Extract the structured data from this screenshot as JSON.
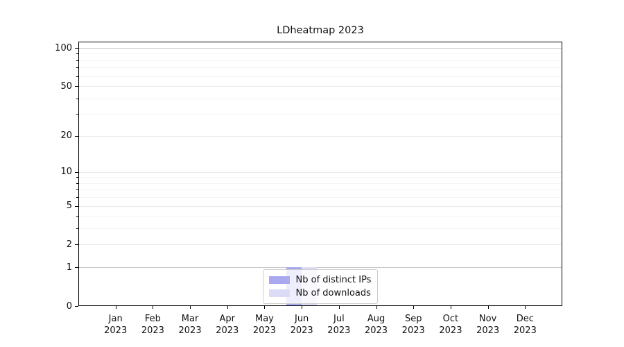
{
  "figure": {
    "background": "#ffffff"
  },
  "chart_data": {
    "type": "bar",
    "title": "LDheatmap 2023",
    "xlabel": "",
    "ylabel": "",
    "categories": [
      "Jan 2023",
      "Feb 2023",
      "Mar 2023",
      "Apr 2023",
      "May 2023",
      "Jun 2023",
      "Jul 2023",
      "Aug 2023",
      "Sep 2023",
      "Oct 2023",
      "Nov 2023",
      "Dec 2023"
    ],
    "series": [
      {
        "name": "Nb of distinct IPs",
        "color": "#a9a9f0",
        "values": [
          0,
          0,
          0,
          0,
          0,
          1,
          0,
          0,
          0,
          0,
          0,
          0
        ]
      },
      {
        "name": "Nb of downloads",
        "color": "#dbdbf6",
        "values": [
          0,
          0,
          0,
          0,
          0,
          1,
          0,
          0,
          0,
          0,
          0,
          0
        ]
      }
    ],
    "yscale": "log1p",
    "ylim": [
      0,
      112
    ],
    "y_major_ticks": [
      0,
      1,
      2,
      5,
      10,
      20,
      50,
      100
    ],
    "y_minor_ticks": [
      3,
      4,
      6,
      7,
      8,
      9,
      30,
      40,
      60,
      70,
      80,
      90
    ],
    "emphasized_gridlines": [
      1,
      100
    ],
    "grid": true,
    "legend_position": "lower center",
    "colors": {
      "grid_major": "#e9e9e9",
      "grid_minor": "#f4f4f4",
      "grid_emphasized": "#c6c6c6",
      "axis": "#000000",
      "text": "#111111",
      "legend_border": "#cccccc"
    }
  }
}
